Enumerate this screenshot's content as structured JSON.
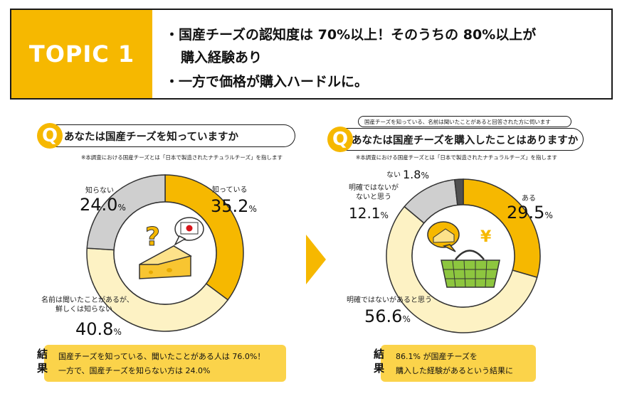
{
  "topic": {
    "label": "TOPIC 1",
    "line1": "・国産チーズの認知度は 70%以上！そのうちの 80%以上が",
    "line2": "購入経験あり",
    "line3": "・一方で価格が購入ハードルに。"
  },
  "colors": {
    "accent": "#f6b800",
    "light_yellow": "#fdf2c4",
    "grey": "#cfcfcf",
    "dark": "#505050",
    "result_bg": "#fbd34a"
  },
  "left": {
    "q_mark": "Q",
    "question": "あなたは国産チーズを知っていますか",
    "note": "※本調査における国産チーズとは「日本で製造されたナチュラルチーズ」を指します",
    "result_head": [
      "結",
      "果"
    ],
    "result_line1": "国産チーズを知っている、聞いたことがある人は 76.0%！",
    "result_line2": "一方で、国産チーズを知らない方は 24.0%"
  },
  "right": {
    "q_mark": "Q",
    "pre_question": "国産チーズを知っている、名前は聞いたことがあると回答された方に伺います",
    "question": "あなたは国産チーズを購入したことはありますか",
    "note": "※本調査における国産チーズとは「日本で製造されたナチュラルチーズ」を指します",
    "result_head": [
      "結",
      "果"
    ],
    "result_line1": "86.1% が国産チーズを",
    "result_line2": "購入した経験があるという結果に"
  },
  "chart_data": [
    {
      "type": "pie",
      "title": "あなたは国産チーズを知っていますか",
      "slices": [
        {
          "label": "知っている",
          "value": 35.2,
          "display": "35.2",
          "color": "#f6b800"
        },
        {
          "label": "名前は聞いたことがあるが、鮮しくは知らない",
          "label_lines": [
            "名前は聞いたことがあるが、",
            "鮮しくは知らない"
          ],
          "value": 40.8,
          "display": "40.8",
          "color": "#fdf2c4"
        },
        {
          "label": "知らない",
          "value": 24.0,
          "display": "24.0",
          "color": "#cfcfcf"
        }
      ],
      "unit": "%"
    },
    {
      "type": "pie",
      "title": "あなたは国産チーズを購入したことはありますか",
      "slices": [
        {
          "label": "ある",
          "value": 29.5,
          "display": "29.5",
          "color": "#f6b800"
        },
        {
          "label": "明確ではないがあると思う",
          "value": 56.6,
          "display": "56.6",
          "color": "#fdf2c4"
        },
        {
          "label": "明確ではないがないと思う",
          "label_lines": [
            "明確ではないが",
            "ないと思う"
          ],
          "value": 12.1,
          "display": "12.1",
          "color": "#cfcfcf"
        },
        {
          "label": "ない",
          "value": 1.8,
          "display": "1.8",
          "color": "#505050"
        }
      ],
      "unit": "%"
    }
  ],
  "icons": {
    "question_mark": "?",
    "yen": "¥"
  }
}
